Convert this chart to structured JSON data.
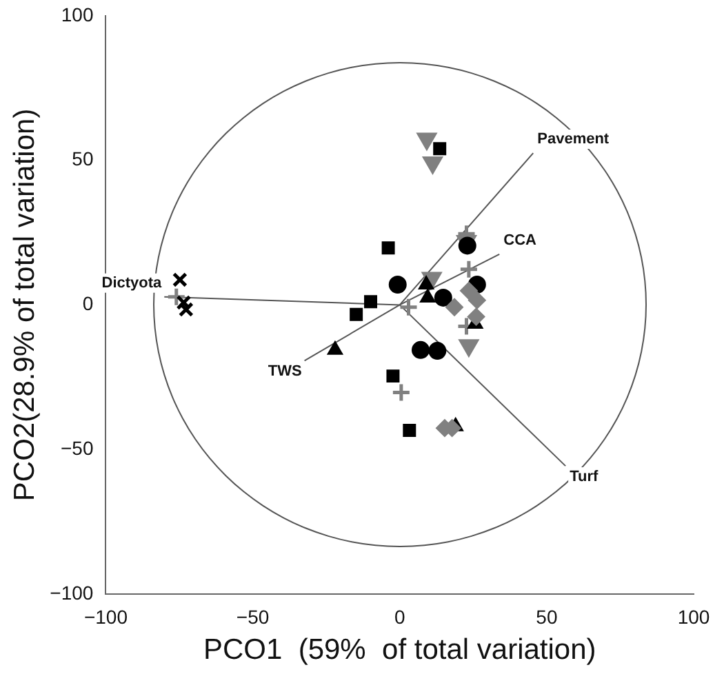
{
  "chart_data": {
    "type": "scatter",
    "xlabel": "PCO1  (59%  of total variation)",
    "ylabel": "PCO2(28.9% of total variation)",
    "xlim": [
      -100,
      100
    ],
    "xticks": [
      -100,
      -50,
      0,
      50,
      100
    ],
    "ylim": [
      -100,
      100
    ],
    "yticks": [
      -100,
      -50,
      0,
      50,
      100
    ],
    "grid": false,
    "legend": false,
    "series": [
      {
        "color": "#000000",
        "marker": "square",
        "x": [
          13.6,
          -3.9,
          -9.9,
          -14.8,
          -2.3,
          3.3
        ],
        "values": [
          54,
          19.7,
          1.1,
          -3.3,
          -24.6,
          -43.4
        ]
      },
      {
        "color": "#000000",
        "marker": "circle",
        "x": [
          -0.7,
          23,
          26.3,
          14.8,
          7.1,
          12.8
        ],
        "values": [
          7,
          20.5,
          7,
          2.5,
          -15.6,
          -15.9
        ]
      },
      {
        "color": "#000000",
        "marker": "triangle",
        "x": [
          -22,
          9,
          9.5,
          19,
          25.7
        ],
        "values": [
          -15.6,
          7,
          2.5,
          -42,
          -6.6
        ]
      },
      {
        "color": "#000000",
        "marker": "x",
        "x": [
          -74.8,
          -73.5,
          -72.7
        ],
        "values": [
          8.7,
          0.8,
          -1.6
        ]
      },
      {
        "color": "#808080",
        "marker": "triangle-down",
        "x": [
          9.2,
          11.2,
          10.9,
          22.7,
          23.5
        ],
        "values": [
          57.4,
          49.2,
          9.3,
          22,
          -14
        ]
      },
      {
        "color": "#808080",
        "marker": "diamond",
        "x": [
          18.6,
          23.5,
          26.3,
          26,
          15.3,
          17.8
        ],
        "values": [
          -0.8,
          4.9,
          1.6,
          -4.1,
          -42.6,
          -42.6
        ]
      },
      {
        "color": "#808080",
        "marker": "cross",
        "x": [
          22.7,
          23.5,
          0.5,
          3,
          -76,
          22.7
        ],
        "values": [
          24.6,
          12.3,
          -30.3,
          -0.8,
          2.8,
          -7.4
        ]
      },
      {
        "type": "line",
        "name": "Pavement",
        "color": "#555555",
        "x": [
          0,
          45.4
        ],
        "values": [
          0,
          52.5
        ]
      },
      {
        "type": "line",
        "name": "CCA",
        "color": "#555555",
        "x": [
          0,
          33.9
        ],
        "values": [
          0,
          17.5
        ]
      },
      {
        "type": "line",
        "name": "Turf",
        "color": "#555555",
        "x": [
          0,
          56.4
        ],
        "values": [
          0,
          -55.7
        ]
      },
      {
        "type": "line",
        "name": "TWS",
        "color": "#555555",
        "x": [
          0,
          -32.4
        ],
        "values": [
          0,
          -19.3
        ]
      },
      {
        "type": "line",
        "name": "Dictyota",
        "color": "#555555",
        "x": [
          0,
          -80.1
        ],
        "values": [
          0,
          2.8
        ]
      }
    ]
  }
}
